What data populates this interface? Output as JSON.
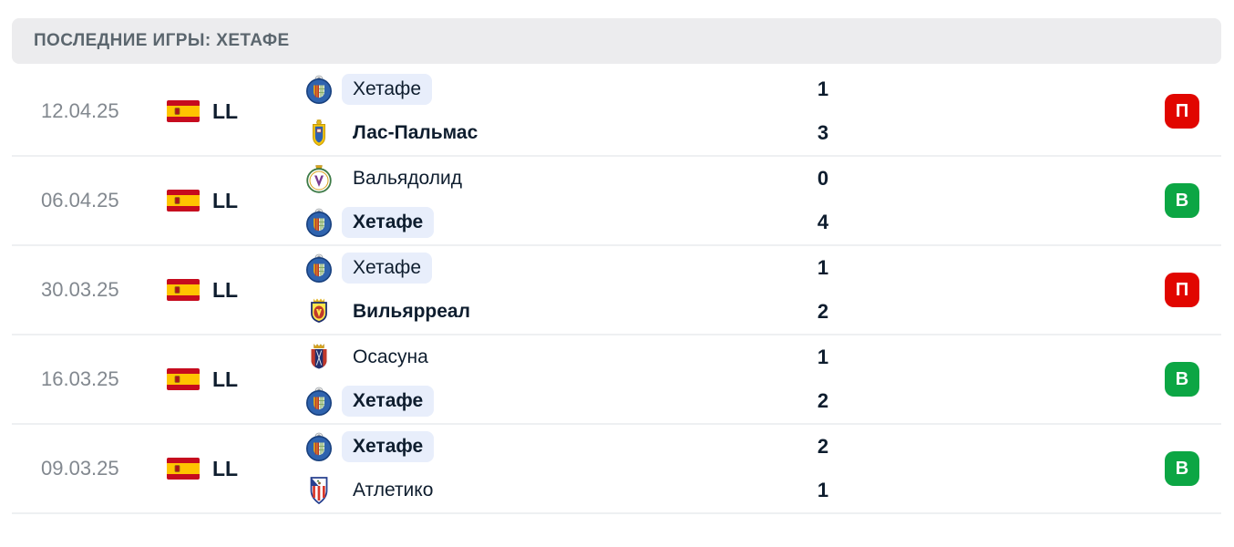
{
  "header": {
    "title": "ПОСЛЕДНИЕ ИГРЫ: ХЕТАФЕ"
  },
  "colors": {
    "win_badge": "#0ca644",
    "loss_badge": "#e10600",
    "highlight_bg": "#e8eefb"
  },
  "matches": [
    {
      "date": "12.04.25",
      "league": {
        "code": "LL",
        "flag": "spain"
      },
      "home": {
        "name": "Хетафе",
        "logo": "getafe",
        "score": "1",
        "highlighted": true,
        "winner": false
      },
      "away": {
        "name": "Лас-Пальмас",
        "logo": "las-palmas",
        "score": "3",
        "highlighted": false,
        "winner": true
      },
      "result": {
        "label": "П",
        "outcome": "loss"
      }
    },
    {
      "date": "06.04.25",
      "league": {
        "code": "LL",
        "flag": "spain"
      },
      "home": {
        "name": "Вальядолид",
        "logo": "valladolid",
        "score": "0",
        "highlighted": false,
        "winner": false
      },
      "away": {
        "name": "Хетафе",
        "logo": "getafe",
        "score": "4",
        "highlighted": true,
        "winner": true
      },
      "result": {
        "label": "В",
        "outcome": "win"
      }
    },
    {
      "date": "30.03.25",
      "league": {
        "code": "LL",
        "flag": "spain"
      },
      "home": {
        "name": "Хетафе",
        "logo": "getafe",
        "score": "1",
        "highlighted": true,
        "winner": false
      },
      "away": {
        "name": "Вильярреал",
        "logo": "villarreal",
        "score": "2",
        "highlighted": false,
        "winner": true
      },
      "result": {
        "label": "П",
        "outcome": "loss"
      }
    },
    {
      "date": "16.03.25",
      "league": {
        "code": "LL",
        "flag": "spain"
      },
      "home": {
        "name": "Осасуна",
        "logo": "osasuna",
        "score": "1",
        "highlighted": false,
        "winner": false
      },
      "away": {
        "name": "Хетафе",
        "logo": "getafe",
        "score": "2",
        "highlighted": true,
        "winner": true
      },
      "result": {
        "label": "В",
        "outcome": "win"
      }
    },
    {
      "date": "09.03.25",
      "league": {
        "code": "LL",
        "flag": "spain"
      },
      "home": {
        "name": "Хетафе",
        "logo": "getafe",
        "score": "2",
        "highlighted": true,
        "winner": true
      },
      "away": {
        "name": "Атлетико",
        "logo": "atletico",
        "score": "1",
        "highlighted": false,
        "winner": false
      },
      "result": {
        "label": "В",
        "outcome": "win"
      }
    }
  ]
}
